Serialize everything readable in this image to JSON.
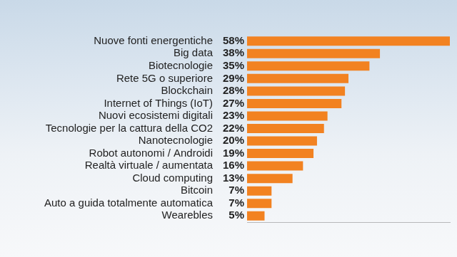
{
  "chart_data": {
    "type": "bar",
    "orientation": "horizontal",
    "categories": [
      "Nuove fonti energentiche",
      "Big data",
      "Biotecnologie",
      "Rete 5G o superiore",
      "Blockchain",
      "Internet of Things (IoT)",
      "Nuovi ecosistemi digitali",
      "Tecnologie per la cattura della CO2",
      "Nanotecnologie",
      "Robot autonomi / Androidi",
      "Realtà virtuale / aumentata",
      "Cloud computing",
      "Bitcoin",
      "Auto a guida totalmente automatica",
      "Wearebles"
    ],
    "values": [
      58,
      38,
      35,
      29,
      28,
      27,
      23,
      22,
      20,
      19,
      16,
      13,
      7,
      7,
      5
    ],
    "value_labels": [
      "58%",
      "38%",
      "35%",
      "29%",
      "28%",
      "27%",
      "23%",
      "22%",
      "20%",
      "19%",
      "16%",
      "13%",
      "7%",
      "7%",
      "5%"
    ],
    "color": "#f28221",
    "xlim": [
      0,
      58
    ],
    "data_labels": true,
    "tick_labels": "y",
    "grid": false
  }
}
